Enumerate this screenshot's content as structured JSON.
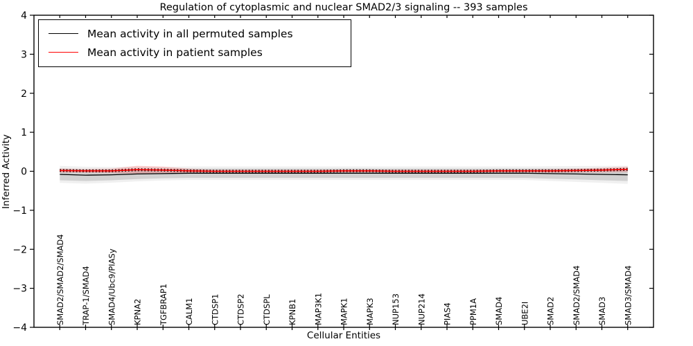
{
  "title": "Regulation of cytoplasmic and nuclear SMAD2/3 signaling -- 393 samples",
  "axes": {
    "ylabel": "Inferred Activity",
    "xlabel": "Cellular Entities",
    "y_tick_labels": [
      "4",
      "3",
      "2",
      "1",
      "0",
      "−1",
      "−2",
      "−3",
      "−4"
    ],
    "y_tick_values": [
      4,
      3,
      2,
      1,
      0,
      -1,
      -2,
      -3,
      -4
    ]
  },
  "legend": {
    "entries": [
      {
        "label": "Mean activity in all permuted samples",
        "color": "#000000"
      },
      {
        "label": "Mean activity in patient samples",
        "color": "#ff0000"
      }
    ]
  },
  "colors": {
    "frame": "#000000",
    "permuted_line": "#000000",
    "patient_line": "#ff0000",
    "permuted_band": "rgba(0,0,0,0.13)",
    "permuted_band_outer": "rgba(0,0,0,0.06)",
    "patient_band": "rgba(255,0,0,0.18)",
    "marker": "#1a0000",
    "background": "#ffffff"
  },
  "chart_data": {
    "type": "line",
    "title": "Regulation of cytoplasmic and nuclear SMAD2/3 signaling -- 393 samples",
    "xlabel": "Cellular Entities",
    "ylabel": "Inferred Activity",
    "ylim": [
      -4,
      4
    ],
    "grid": false,
    "legend_position": "upper left",
    "categories": [
      "SMAD2/SMAD2/SMAD4",
      "TRAP-1/SMAD4",
      "SMAD4/Ubc9/PIASy",
      "KPNA2",
      "TGFBRAP1",
      "CALM1",
      "CTDSP1",
      "CTDSP2",
      "CTDSPL",
      "KPNB1",
      "MAP3K1",
      "MAPK1",
      "MAPK3",
      "NUP153",
      "NUP214",
      "PIAS4",
      "PPM1A",
      "SMAD4",
      "UBE2I",
      "SMAD2",
      "SMAD2/SMAD4",
      "SMAD3",
      "SMAD3/SMAD4"
    ],
    "series": [
      {
        "name": "Mean activity in all permuted samples",
        "color": "#000000",
        "values": [
          -0.08,
          -0.1,
          -0.09,
          -0.07,
          -0.06,
          -0.05,
          -0.05,
          -0.05,
          -0.05,
          -0.05,
          -0.05,
          -0.05,
          -0.05,
          -0.05,
          -0.05,
          -0.05,
          -0.05,
          -0.05,
          -0.05,
          -0.06,
          -0.07,
          -0.08,
          -0.09
        ],
        "band_halfwidth": [
          0.15,
          0.15,
          0.14,
          0.13,
          0.12,
          0.12,
          0.12,
          0.12,
          0.12,
          0.12,
          0.12,
          0.12,
          0.12,
          0.12,
          0.12,
          0.12,
          0.12,
          0.12,
          0.12,
          0.13,
          0.14,
          0.15,
          0.16
        ]
      },
      {
        "name": "Mean activity in patient samples",
        "color": "#ff0000",
        "values": [
          0.02,
          0.01,
          0.01,
          0.04,
          0.03,
          0.01,
          0.0,
          0.0,
          0.0,
          0.0,
          0.0,
          0.01,
          0.01,
          0.0,
          0.0,
          0.0,
          0.0,
          0.01,
          0.01,
          0.01,
          0.02,
          0.03,
          0.05
        ],
        "band_halfwidth": [
          0.05,
          0.05,
          0.06,
          0.1,
          0.09,
          0.06,
          0.04,
          0.04,
          0.04,
          0.04,
          0.04,
          0.04,
          0.04,
          0.04,
          0.04,
          0.04,
          0.04,
          0.04,
          0.04,
          0.05,
          0.05,
          0.06,
          0.07
        ]
      }
    ]
  }
}
